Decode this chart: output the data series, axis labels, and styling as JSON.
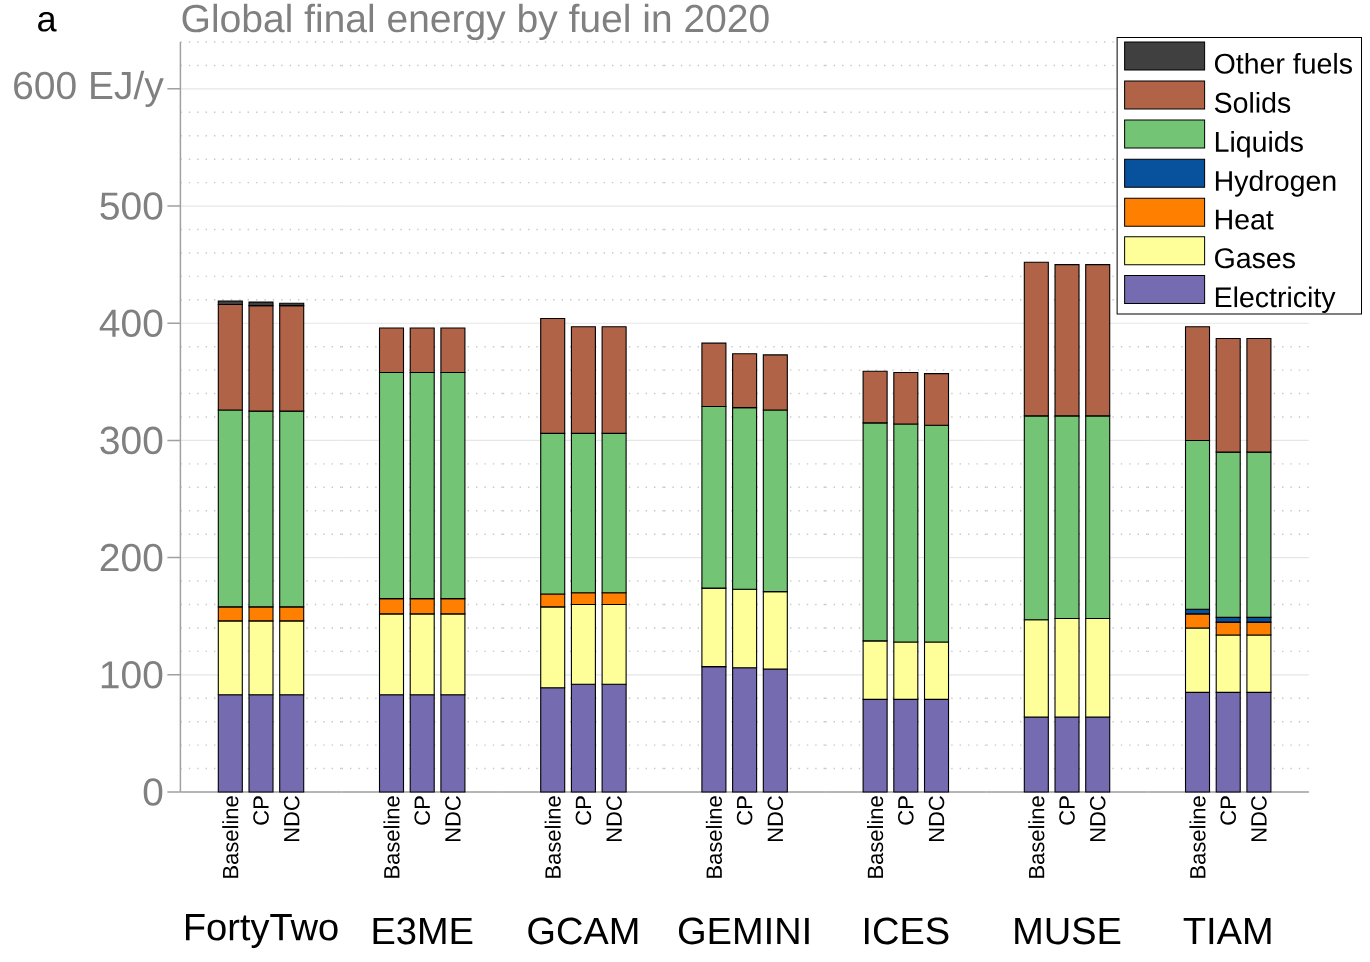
{
  "chart_data": [
    {
      "type": "bar",
      "title": "Global final energy by fuel in 2020",
      "annotations": [
        "a"
      ],
      "xlabel": "FortyTwo",
      "categories": [
        "Baseline",
        "CP",
        "NDC"
      ],
      "stacked": true,
      "ylim": [
        0,
        640
      ],
      "yticks": [
        0,
        100,
        200,
        300,
        400,
        500,
        {
          "value": 600,
          "label": "600 EJ/y"
        }
      ],
      "grid": "y",
      "series": [
        {
          "color": "#756bb1",
          "values": [
            83,
            83,
            83
          ]
        },
        {
          "color": "#ffff99",
          "values": [
            63,
            63,
            63
          ]
        },
        {
          "color": "#ff7f00",
          "values": [
            12,
            12,
            12
          ]
        },
        {
          "color": "#74c476",
          "values": [
            168,
            167,
            167
          ]
        },
        {
          "color": "#b06346",
          "values": [
            90,
            90,
            90
          ]
        },
        {
          "color": "#404040",
          "values": [
            3,
            3,
            2
          ]
        }
      ]
    },
    {
      "type": "bar",
      "xlabel": "E3ME",
      "categories": [
        "Baseline",
        "CP",
        "NDC"
      ],
      "stacked": true,
      "ylim": [
        0,
        640
      ],
      "yticks": [
        0,
        100,
        200,
        300,
        400,
        500,
        600
      ],
      "tick_labels": "x",
      "grid": "y",
      "series": [
        {
          "color": "#756bb1",
          "values": [
            83,
            83,
            83
          ]
        },
        {
          "color": "#ffff99",
          "values": [
            69,
            69,
            69
          ]
        },
        {
          "color": "#ff7f00",
          "values": [
            13,
            13,
            13
          ]
        },
        {
          "color": "#74c476",
          "values": [
            193,
            193,
            193
          ]
        },
        {
          "color": "#b06346",
          "values": [
            38,
            38,
            38
          ]
        }
      ]
    },
    {
      "type": "bar",
      "xlabel": "GCAM",
      "categories": [
        "Baseline",
        "CP",
        "NDC"
      ],
      "stacked": true,
      "ylim": [
        0,
        640
      ],
      "yticks": [
        0,
        100,
        200,
        300,
        400,
        500,
        600
      ],
      "tick_labels": "x",
      "grid": "y",
      "series": [
        {
          "color": "#756bb1",
          "values": [
            89,
            92,
            92
          ]
        },
        {
          "color": "#ffff99",
          "values": [
            69,
            68,
            68
          ]
        },
        {
          "color": "#ff7f00",
          "values": [
            11,
            10,
            10
          ]
        },
        {
          "color": "#74c476",
          "values": [
            137,
            136,
            136
          ]
        },
        {
          "color": "#b06346",
          "values": [
            98,
            91,
            91
          ]
        }
      ]
    },
    {
      "type": "bar",
      "xlabel": "GEMINI",
      "categories": [
        "Baseline",
        "CP",
        "NDC"
      ],
      "stacked": true,
      "ylim": [
        0,
        640
      ],
      "yticks": [
        0,
        100,
        200,
        300,
        400,
        500,
        600
      ],
      "tick_labels": "x",
      "grid": "y",
      "series": [
        {
          "color": "#756bb1",
          "values": [
            107,
            106,
            105
          ]
        },
        {
          "color": "#ffff99",
          "values": [
            67,
            67,
            66
          ]
        },
        {
          "color": "#74c476",
          "values": [
            155,
            155,
            155
          ]
        },
        {
          "color": "#b06346",
          "values": [
            54,
            46,
            47
          ]
        }
      ]
    },
    {
      "type": "bar",
      "xlabel": "ICES",
      "categories": [
        "Baseline",
        "CP",
        "NDC"
      ],
      "stacked": true,
      "ylim": [
        0,
        640
      ],
      "yticks": [
        0,
        100,
        200,
        300,
        400,
        500,
        600
      ],
      "tick_labels": "x",
      "grid": "y",
      "series": [
        {
          "color": "#756bb1",
          "values": [
            79,
            79,
            79
          ]
        },
        {
          "color": "#ffff99",
          "values": [
            50,
            49,
            49
          ]
        },
        {
          "color": "#74c476",
          "values": [
            186,
            186,
            185
          ]
        },
        {
          "color": "#b06346",
          "values": [
            44,
            44,
            44
          ]
        }
      ]
    },
    {
      "type": "bar",
      "xlabel": "MUSE",
      "categories": [
        "Baseline",
        "CP",
        "NDC"
      ],
      "stacked": true,
      "ylim": [
        0,
        640
      ],
      "yticks": [
        0,
        100,
        200,
        300,
        400,
        500,
        600
      ],
      "tick_labels": "x",
      "grid": "y",
      "series": [
        {
          "color": "#756bb1",
          "values": [
            64,
            64,
            64
          ]
        },
        {
          "color": "#ffff99",
          "values": [
            83,
            84,
            84
          ]
        },
        {
          "color": "#74c476",
          "values": [
            174,
            173,
            173
          ]
        },
        {
          "color": "#b06346",
          "values": [
            131,
            129,
            129
          ]
        }
      ]
    },
    {
      "type": "bar",
      "xlabel": "TIAM",
      "categories": [
        "Baseline",
        "CP",
        "NDC"
      ],
      "stacked": true,
      "ylim": [
        0,
        640
      ],
      "yticks": [
        0,
        100,
        200,
        300,
        400,
        500,
        600
      ],
      "tick_labels": "x",
      "grid": "y",
      "legend": "top right",
      "series": [
        {
          "name": "Electricity",
          "color": "#756bb1",
          "values": [
            85,
            85,
            85
          ]
        },
        {
          "name": "Gases",
          "color": "#ffff99",
          "values": [
            55,
            49,
            49
          ]
        },
        {
          "name": "Heat",
          "color": "#ff7f00",
          "values": [
            12,
            11,
            11
          ]
        },
        {
          "name": "Hydrogen",
          "color": "#08519c",
          "values": [
            4,
            4,
            4
          ]
        },
        {
          "name": "Liquids",
          "color": "#74c476",
          "values": [
            144,
            141,
            141
          ]
        },
        {
          "name": "Solids",
          "color": "#b06346",
          "values": [
            97,
            97,
            97
          ]
        },
        {
          "name": "Other fuels",
          "color": "#404040",
          "values": [
            0,
            0,
            0
          ]
        }
      ]
    }
  ]
}
